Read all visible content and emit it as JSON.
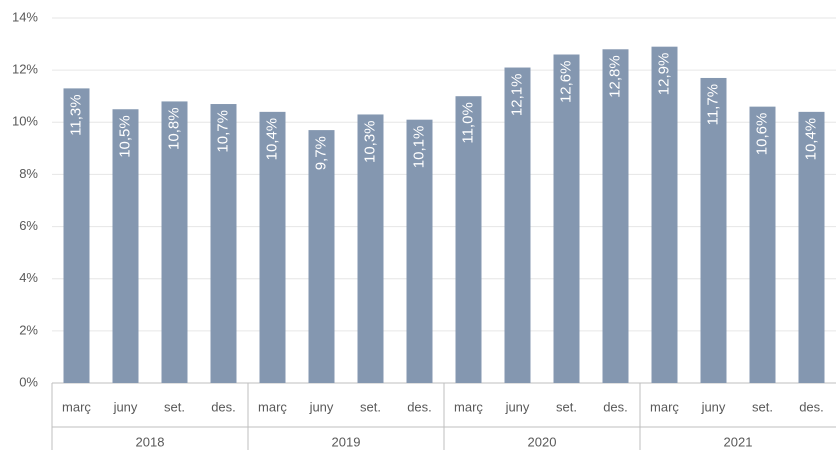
{
  "chart_data": {
    "type": "bar",
    "categories": [
      "març",
      "juny",
      "set.",
      "des.",
      "març",
      "juny",
      "set.",
      "des.",
      "març",
      "juny",
      "set.",
      "des.",
      "març",
      "juny",
      "set.",
      "des."
    ],
    "groups": [
      "2018",
      "2019",
      "2020",
      "2021"
    ],
    "values": [
      11.3,
      10.5,
      10.8,
      10.7,
      10.4,
      9.7,
      10.3,
      10.1,
      11.0,
      12.1,
      12.6,
      12.8,
      12.9,
      11.7,
      10.6,
      10.4
    ],
    "value_labels": [
      "11,3%",
      "10,5%",
      "10,8%",
      "10,7%",
      "10,4%",
      "9,7%",
      "10,3%",
      "10,1%",
      "11,0%",
      "12,1%",
      "12,6%",
      "12,8%",
      "12,9%",
      "11,7%",
      "10,6%",
      "10,4%"
    ],
    "color": "#8497b0",
    "ylim": [
      0,
      14
    ],
    "yticks": [
      {
        "value": 0,
        "label": "0%"
      },
      {
        "value": 2,
        "label": "2%"
      },
      {
        "value": 4,
        "label": "4%"
      },
      {
        "value": 6,
        "label": "6%"
      },
      {
        "value": 8,
        "label": "8%"
      },
      {
        "value": 10,
        "label": "10%"
      },
      {
        "value": 12,
        "label": "12%"
      },
      {
        "value": 14,
        "label": "14%"
      }
    ],
    "grid": true
  }
}
